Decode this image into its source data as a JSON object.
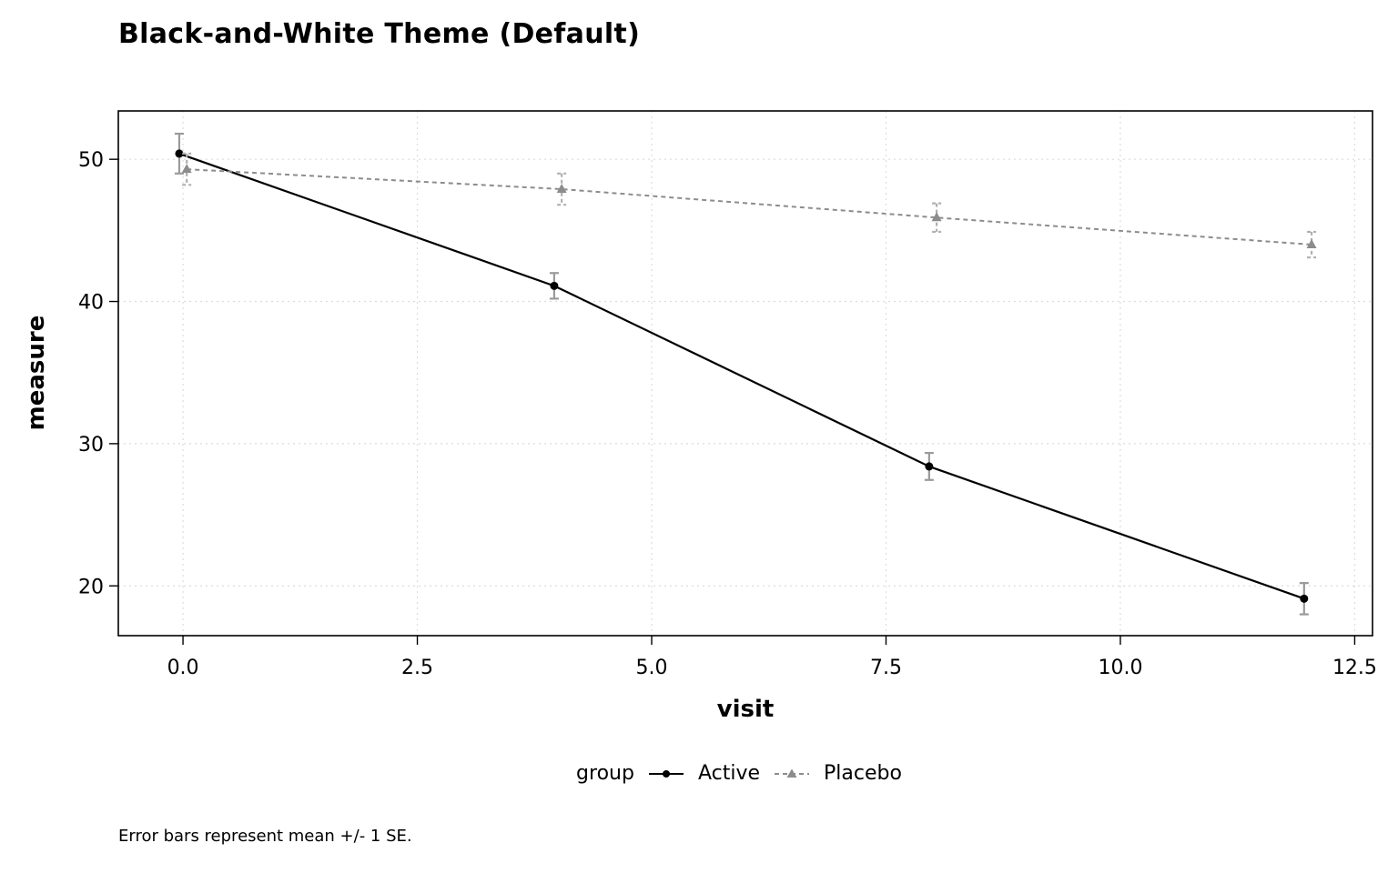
{
  "chart_data": {
    "type": "line",
    "title": "Black-and-White Theme (Default)",
    "xlabel": "visit",
    "ylabel": "measure",
    "xlim": [
      -0.69,
      12.69
    ],
    "ylim": [
      16.5,
      53.4
    ],
    "xticks": [
      0,
      2.5,
      5,
      7.5,
      10,
      12.5
    ],
    "xtick_labels": [
      "0.0",
      "2.5",
      "5.0",
      "7.5",
      "10.0",
      "12.5"
    ],
    "yticks": [
      20,
      30,
      40,
      50
    ],
    "ytick_labels": [
      "20",
      "30",
      "40",
      "50"
    ],
    "grid": true,
    "legend": {
      "title": "group",
      "position": "bottom",
      "entries": [
        "Active",
        "Placebo"
      ]
    },
    "series": [
      {
        "name": "Active",
        "color": "#000000",
        "line_style": "solid",
        "marker": "circle",
        "dodge": -0.04,
        "x": [
          0,
          4,
          8,
          12
        ],
        "y": [
          50.4,
          41.1,
          28.4,
          19.1
        ],
        "se": [
          1.4,
          0.9,
          0.95,
          1.1
        ]
      },
      {
        "name": "Placebo",
        "color": "#8c8c8c",
        "line_style": "dashed",
        "marker": "triangle",
        "dodge": 0.04,
        "x": [
          0,
          4,
          8,
          12
        ],
        "y": [
          49.3,
          47.9,
          45.9,
          44.0
        ],
        "se": [
          1.1,
          1.1,
          1.0,
          0.9
        ]
      }
    ]
  },
  "caption": "Error bars represent mean +/- 1 SE."
}
